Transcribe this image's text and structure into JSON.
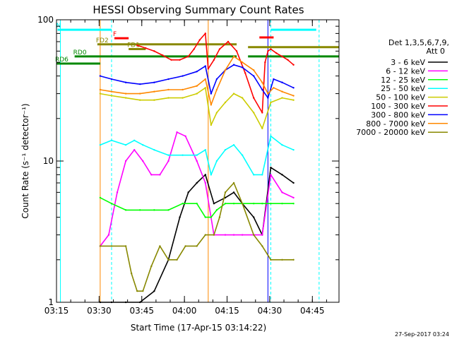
{
  "chart_data": {
    "type": "line",
    "title": "HESSI Observing Summary Count Rates",
    "xlabel": "Start Time (17-Apr-15 03:14:22)",
    "ylabel": "Count Rate (s⁻¹ detector⁻¹)",
    "y_scale": "log",
    "ylim": [
      1,
      100
    ],
    "xlim_minutes": [
      0.63,
      100
    ],
    "x_ticks": [
      {
        "label": "03:15",
        "minute": 0.63
      },
      {
        "label": "03:30",
        "minute": 15.63
      },
      {
        "label": "03:45",
        "minute": 30.63
      },
      {
        "label": "04:00",
        "minute": 45.63
      },
      {
        "label": "04:15",
        "minute": 60.63
      },
      {
        "label": "04:30",
        "minute": 75.63
      },
      {
        "label": "04:45",
        "minute": 90.63
      }
    ],
    "y_ticks": [
      {
        "label": "1",
        "value": 1
      },
      {
        "label": "10",
        "value": 10
      },
      {
        "label": "100",
        "value": 100
      }
    ],
    "legend_header": [
      "Det 1,3,5,6,7,9,",
      "Att 0"
    ],
    "legend_position": "right",
    "series": [
      {
        "name": "3 - 6 keV",
        "color": "#000000",
        "x": [
          16,
          20,
          25,
          30,
          35,
          40,
          44,
          47,
          50,
          53,
          56,
          60,
          63,
          66,
          70,
          73,
          76,
          80,
          84
        ],
        "y": [
          1,
          1,
          1,
          1,
          1.2,
          2,
          4,
          6,
          7,
          8,
          5,
          5.5,
          6,
          5,
          4,
          3,
          9,
          8,
          7
        ]
      },
      {
        "name": "6 - 12 keV",
        "color": "#ff00ff",
        "x": [
          16,
          19,
          22,
          25,
          28,
          31,
          34,
          37,
          40,
          43,
          46,
          50,
          53,
          56,
          60,
          63,
          66,
          70,
          73,
          76,
          80,
          84
        ],
        "y": [
          2.5,
          3,
          6,
          10,
          12,
          10,
          8,
          8,
          10,
          16,
          15,
          10,
          7,
          3,
          3,
          3,
          3,
          3,
          3,
          8,
          6,
          5.5
        ]
      },
      {
        "name": "12 - 25 keV",
        "color": "#00ff00",
        "x": [
          16,
          20,
          25,
          30,
          35,
          40,
          45,
          50,
          53,
          55,
          57,
          60,
          63,
          66,
          70,
          73,
          76,
          80,
          84
        ],
        "y": [
          5.5,
          5,
          4.5,
          4.5,
          4.5,
          4.5,
          5,
          5,
          4,
          4,
          4.5,
          5,
          5,
          5,
          5,
          5,
          5,
          5,
          5
        ]
      },
      {
        "name": "25 - 50 keV",
        "color": "#00ffff",
        "x": [
          16,
          20,
          25,
          28,
          31,
          35,
          40,
          45,
          50,
          53,
          55,
          57,
          60,
          63,
          66,
          70,
          73,
          76,
          80,
          84
        ],
        "y": [
          13,
          14,
          13,
          14,
          13,
          12,
          11,
          11,
          11,
          12,
          8,
          10,
          12,
          13,
          11,
          8,
          8,
          15,
          13,
          12
        ]
      },
      {
        "name": "50 - 100 keV",
        "color": "#cccc00",
        "x": [
          16,
          20,
          25,
          30,
          35,
          40,
          45,
          50,
          53,
          55,
          57,
          60,
          63,
          66,
          70,
          73,
          76,
          80,
          84
        ],
        "y": [
          30,
          29,
          28,
          27,
          27,
          28,
          28,
          30,
          33,
          18,
          22,
          26,
          30,
          28,
          22,
          17,
          26,
          28,
          27
        ]
      },
      {
        "name": "100 - 300 keV",
        "color": "#ff0000",
        "x": [
          29,
          32,
          35,
          38,
          41,
          44,
          47,
          49,
          51,
          53,
          54,
          56,
          58,
          61,
          64,
          67,
          70,
          73,
          74,
          75,
          76,
          78,
          80,
          82,
          84
        ],
        "y": [
          66,
          63,
          60,
          56,
          52,
          52,
          55,
          62,
          72,
          80,
          45,
          52,
          62,
          70,
          60,
          42,
          28,
          22,
          50,
          60,
          62,
          58,
          55,
          52,
          48
        ]
      },
      {
        "name": "300 - 800 keV",
        "color": "#0000ff",
        "x": [
          16,
          20,
          25,
          30,
          35,
          40,
          45,
          50,
          53,
          55,
          57,
          60,
          63,
          66,
          70,
          73,
          75,
          77,
          80,
          84
        ],
        "y": [
          40,
          38,
          36,
          35,
          36,
          38,
          40,
          43,
          47,
          30,
          38,
          44,
          48,
          46,
          40,
          32,
          28,
          38,
          36,
          33
        ]
      },
      {
        "name": "800 - 7000 keV",
        "color": "#ff8800",
        "x": [
          16,
          20,
          25,
          30,
          35,
          40,
          45,
          50,
          53,
          55,
          57,
          60,
          63,
          66,
          70,
          73,
          75,
          77,
          80,
          84
        ],
        "y": [
          32,
          31,
          30,
          30,
          31,
          32,
          32,
          34,
          38,
          25,
          32,
          44,
          55,
          50,
          44,
          36,
          30,
          33,
          31,
          29
        ]
      },
      {
        "name": "7000 - 20000 keV",
        "color": "#888800",
        "x": [
          16,
          20,
          25,
          27,
          29,
          31,
          34,
          37,
          40,
          43,
          46,
          50,
          53,
          56,
          58,
          60,
          63,
          66,
          70,
          73,
          76,
          80,
          84
        ],
        "y": [
          2.5,
          2.5,
          2.5,
          1.6,
          1.2,
          1.2,
          1.8,
          2.5,
          2,
          2,
          2.5,
          2.5,
          3,
          3,
          4,
          6,
          7,
          5,
          3,
          2.5,
          2,
          2,
          2
        ]
      }
    ],
    "annotations": [
      {
        "text": "N",
        "color": "#00ffff",
        "x_start": 1,
        "x_end": 20,
        "y": 85
      },
      {
        "text": "F",
        "color": "#ff0000",
        "x_start": 21,
        "x_end": 26,
        "y": 74
      },
      {
        "text": "FD2",
        "color": "#888800",
        "x_start": 15,
        "x_end": 64,
        "y": 67
      },
      {
        "text": "FD1",
        "color": "#888800",
        "x_start": 26,
        "x_end": 32,
        "y": 62
      },
      {
        "text": "RD0",
        "color": "#008800",
        "x_start": 7,
        "x_end": 64,
        "y": 55
      },
      {
        "text": "RD6",
        "color": "#008800",
        "x_start": 0.63,
        "x_end": 16,
        "y": 49
      }
    ],
    "extra_markers": [
      {
        "color": "#00ffff",
        "x_start": 76,
        "x_end": 92,
        "y": 85
      },
      {
        "color": "#ff0000",
        "x_start": 72,
        "x_end": 77,
        "y": 75
      },
      {
        "color": "#888800",
        "x_start": 68,
        "x_end": 100,
        "y": 64
      },
      {
        "color": "#008800",
        "x_start": 68,
        "x_end": 100,
        "y": 55
      }
    ],
    "vertical_lines": [
      {
        "minute": 2,
        "color": "#00ffff",
        "style": "solid"
      },
      {
        "minute": 16,
        "color": "#ff8800",
        "style": "solid"
      },
      {
        "minute": 20,
        "color": "#00ffff",
        "style": "dashed"
      },
      {
        "minute": 54,
        "color": "#ff8800",
        "style": "solid"
      },
      {
        "minute": 75,
        "color": "#0000ff",
        "style": "solid"
      },
      {
        "minute": 76,
        "color": "#00ffff",
        "style": "dashed"
      },
      {
        "minute": 93,
        "color": "#00ffff",
        "style": "dashed"
      }
    ],
    "grid": false
  },
  "footer": {
    "timestamp": "27-Sep-2017 03:24"
  }
}
